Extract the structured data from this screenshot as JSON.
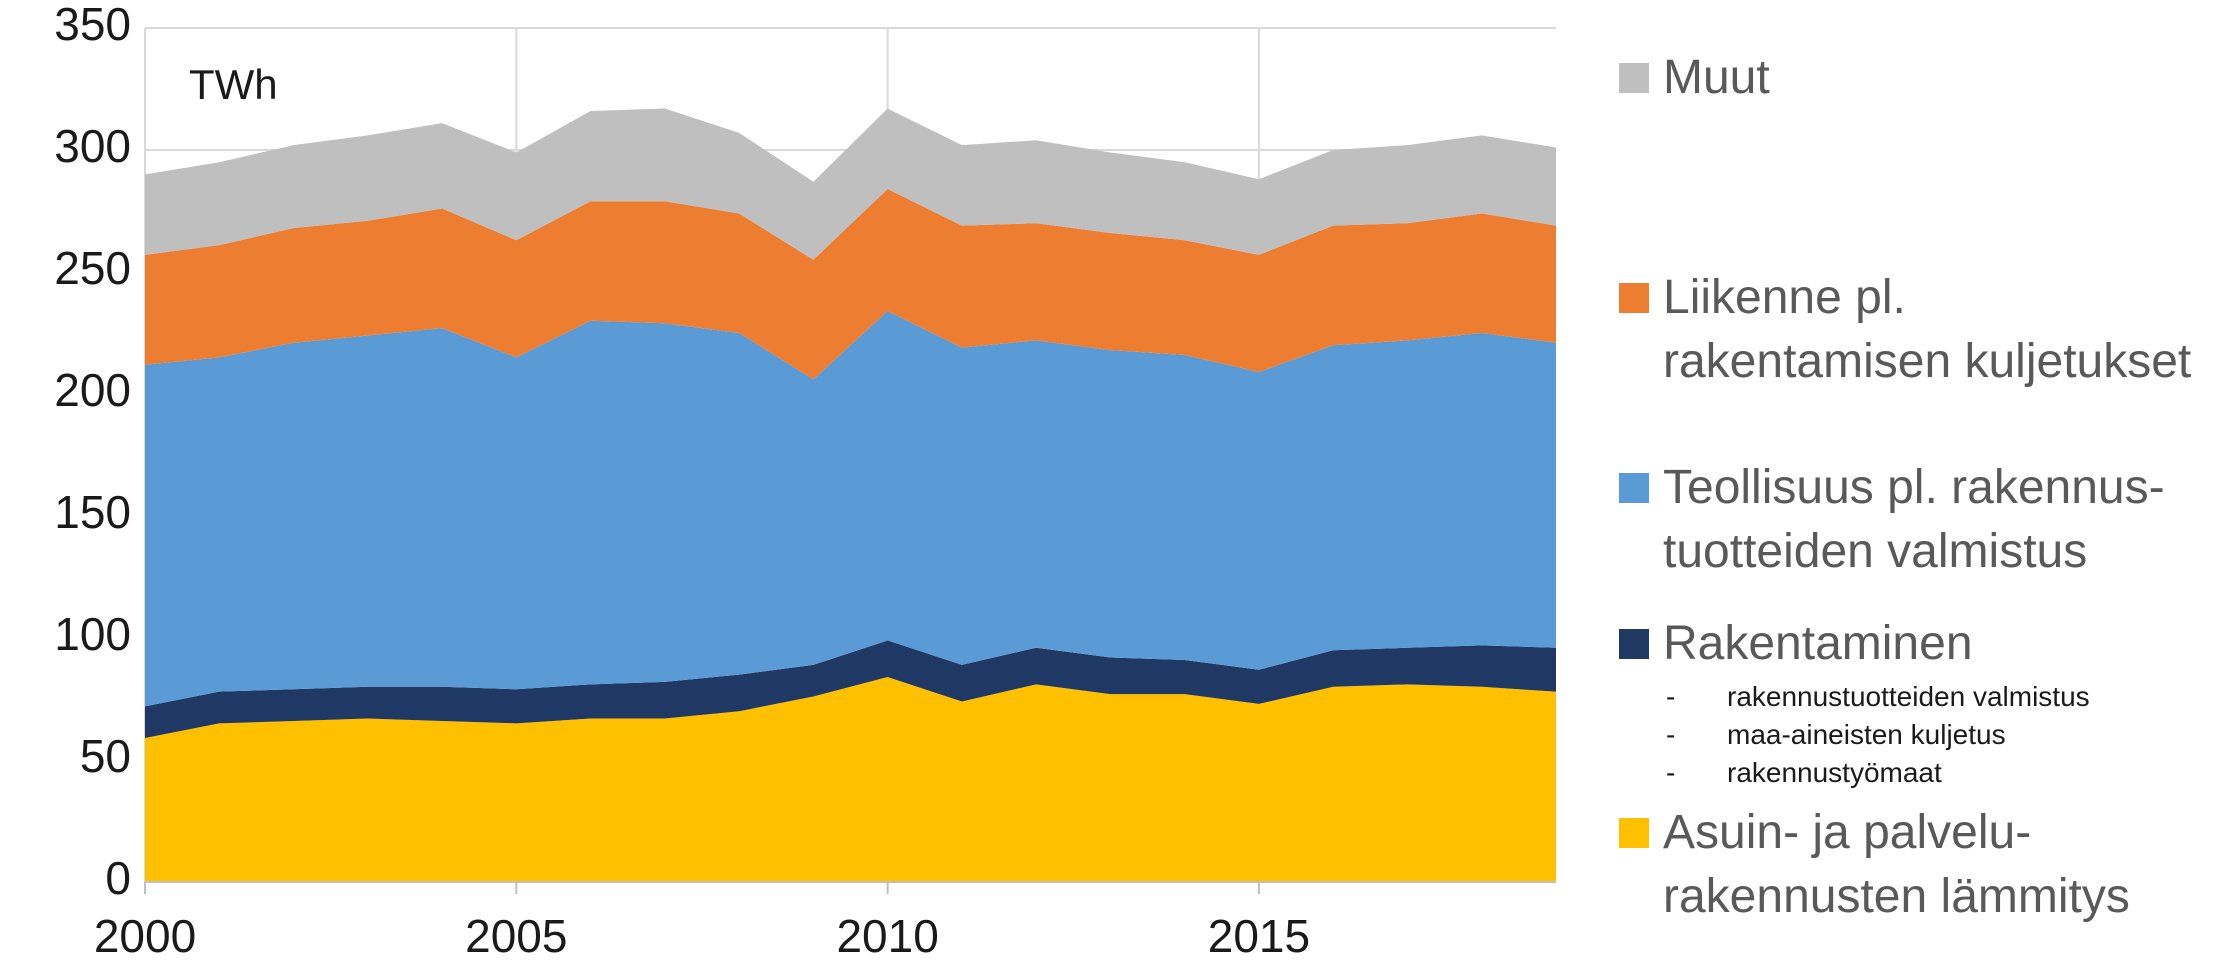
{
  "chart_data": {
    "type": "stacked_area",
    "annotation": "TWh",
    "x": [
      2000,
      2001,
      2002,
      2003,
      2004,
      2005,
      2006,
      2007,
      2008,
      2009,
      2010,
      2011,
      2012,
      2013,
      2014,
      2015,
      2016,
      2017,
      2018,
      2019
    ],
    "xlim": [
      2000,
      2019
    ],
    "xticks": [
      2000,
      2005,
      2010,
      2015
    ],
    "ylim": [
      0,
      350
    ],
    "yticks": [
      0,
      50,
      100,
      150,
      200,
      250,
      300,
      350
    ],
    "grid": true,
    "legend": "right",
    "series": [
      {
        "name": "Asuin- ja palvelu-\nrakennusten lämmitys",
        "color": "#ffc000",
        "values": [
          59,
          65,
          66,
          67,
          66,
          65,
          67,
          67,
          70,
          76,
          84,
          74,
          81,
          77,
          77,
          73,
          80,
          81,
          80,
          78
        ]
      },
      {
        "name": "Rakentaminen",
        "color": "#203864",
        "values": [
          13,
          13,
          13,
          13,
          14,
          14,
          14,
          15,
          15,
          13,
          15,
          15,
          15,
          15,
          14,
          14,
          15,
          15,
          17,
          18
        ],
        "legend_notes": [
          "rakennustuotteiden valmistus",
          "maa-aineisten kuljetus",
          "rakennustyömaat"
        ]
      },
      {
        "name": "Teollisuus pl. rakennus-\ntuotteiden valmistus",
        "color": "#5b9bd5",
        "values": [
          140,
          137,
          142,
          144,
          147,
          136,
          149,
          147,
          140,
          117,
          135,
          130,
          126,
          126,
          125,
          122,
          125,
          126,
          128,
          125
        ]
      },
      {
        "name": "Liikenne pl.\nrakentamisen kuljetukset",
        "color": "#ed7d31",
        "values": [
          45,
          46,
          47,
          47,
          49,
          48,
          49,
          50,
          49,
          49,
          50,
          50,
          48,
          48,
          47,
          48,
          49,
          48,
          49,
          48
        ]
      },
      {
        "name": "Muut",
        "color": "#bfbfbf",
        "values": [
          33,
          34,
          34,
          35,
          35,
          36,
          37,
          38,
          33,
          32,
          33,
          33,
          34,
          33,
          32,
          31,
          31,
          32,
          32,
          32
        ]
      }
    ],
    "legend_note_marker": "-"
  }
}
